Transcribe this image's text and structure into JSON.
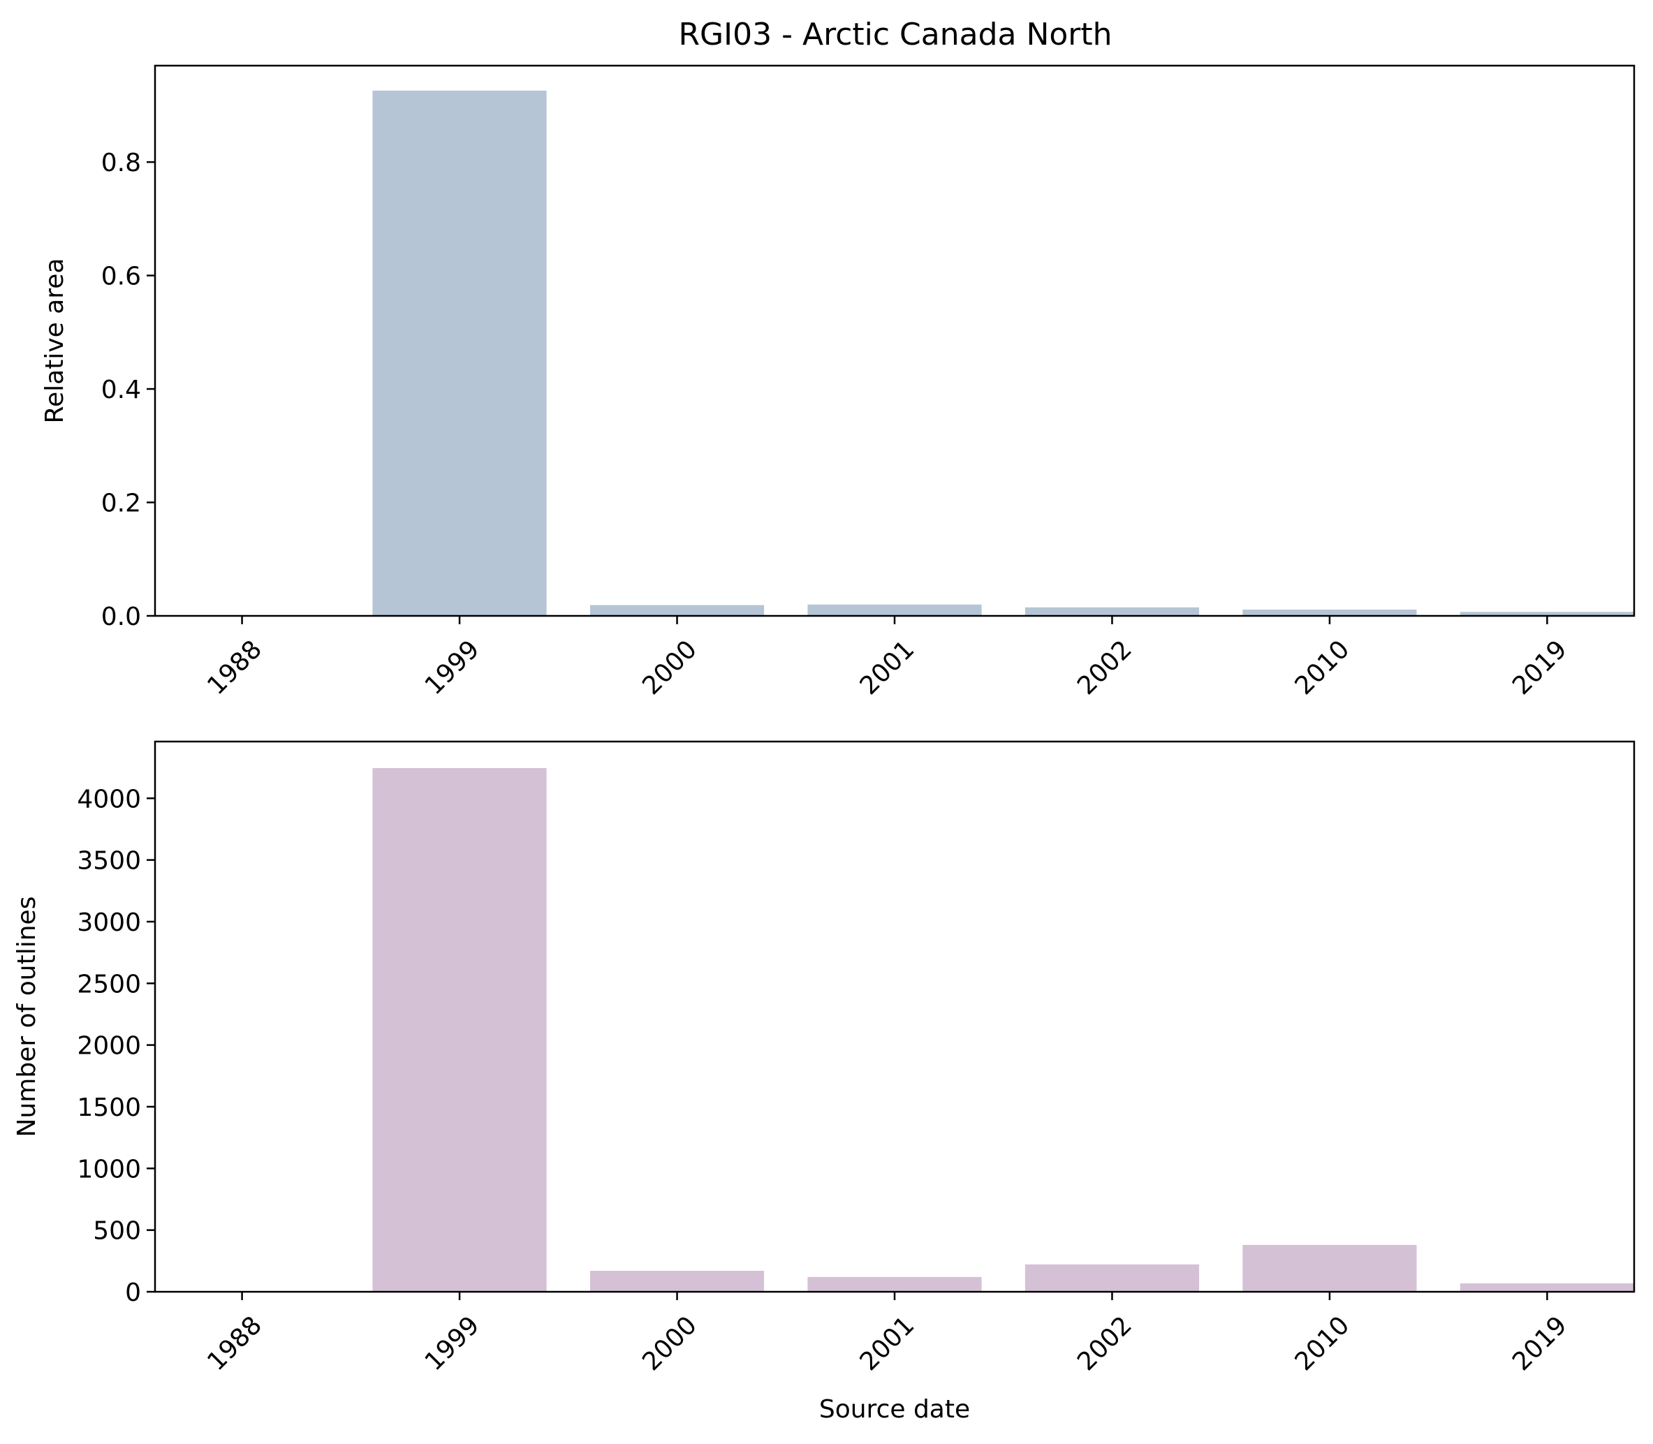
{
  "chart_data": [
    {
      "type": "bar",
      "title": "RGI03 - Arctic Canada North",
      "xlabel": "",
      "ylabel": "Relative area",
      "categories": [
        "1988",
        "1999",
        "2000",
        "2001",
        "2002",
        "2010",
        "2019"
      ],
      "values": [
        0.0,
        0.926,
        0.019,
        0.02,
        0.015,
        0.011,
        0.007
      ],
      "ylim": [
        0,
        0.97
      ],
      "yticks": [
        0.0,
        0.2,
        0.4,
        0.6,
        0.8
      ],
      "ytick_labels": [
        "0.0",
        "0.2",
        "0.4",
        "0.6",
        "0.8"
      ],
      "color": "#b5c5d6",
      "grid": false
    },
    {
      "type": "bar",
      "title": "",
      "xlabel": "Source date",
      "ylabel": "Number of outlines",
      "categories": [
        "1988",
        "1999",
        "2000",
        "2001",
        "2002",
        "2010",
        "2019"
      ],
      "values": [
        0,
        4245,
        170,
        120,
        222,
        380,
        68
      ],
      "ylim": [
        0,
        4460
      ],
      "yticks": [
        0,
        500,
        1000,
        1500,
        2000,
        2500,
        3000,
        3500,
        4000
      ],
      "ytick_labels": [
        "0",
        "500",
        "1000",
        "1500",
        "2000",
        "2500",
        "3000",
        "3500",
        "4000"
      ],
      "color": "#d5c1d6",
      "grid": false
    }
  ]
}
